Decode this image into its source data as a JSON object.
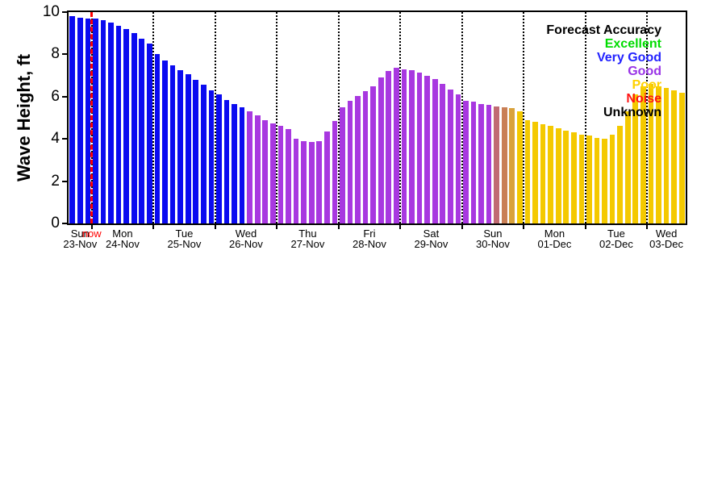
{
  "legend": {
    "title": "Forecast Accuracy",
    "entries": [
      {
        "label": "Excellent",
        "color": "#00dc00"
      },
      {
        "label": "Very Good",
        "color": "#2222ff"
      },
      {
        "label": "Good",
        "color": "#9933e6"
      },
      {
        "label": "Poor",
        "color": "#ffd200"
      },
      {
        "label": "Noise",
        "color": "#ff1414"
      },
      {
        "label": "Unknown",
        "color": "#000000"
      }
    ]
  },
  "chart_data": {
    "type": "bar",
    "title": "",
    "xlabel": "",
    "ylabel": "Wave Height, ft",
    "ylim": [
      0,
      10
    ],
    "yticks": [
      0,
      2,
      4,
      6,
      8,
      10
    ],
    "grid": "vertical-dotted-per-day",
    "legend_position": "top-right",
    "now_label": "now",
    "now_index": 3,
    "now_line_color": "#ff0000",
    "bar_colors": {
      "very_good": "#0b0bf0",
      "good": "#a838e0",
      "fade1": "#c06a72",
      "fade2": "#c97f55",
      "fade3": "#d9a23c",
      "poor": "#f4c900"
    },
    "days": [
      {
        "day": "Sun",
        "date": "23-Nov",
        "bars": [
          [
            9.8,
            "very_good"
          ],
          [
            9.75,
            "very_good"
          ],
          [
            9.7,
            "very_good"
          ]
        ]
      },
      {
        "day": "Mon",
        "date": "24-Nov",
        "bars": [
          [
            9.7,
            "very_good"
          ],
          [
            9.6,
            "very_good"
          ],
          [
            9.5,
            "very_good"
          ],
          [
            9.35,
            "very_good"
          ],
          [
            9.2,
            "very_good"
          ],
          [
            9.0,
            "very_good"
          ],
          [
            8.75,
            "very_good"
          ],
          [
            8.5,
            "very_good"
          ]
        ]
      },
      {
        "day": "Tue",
        "date": "25-Nov",
        "bars": [
          [
            8.0,
            "very_good"
          ],
          [
            7.7,
            "very_good"
          ],
          [
            7.5,
            "very_good"
          ],
          [
            7.25,
            "very_good"
          ],
          [
            7.05,
            "very_good"
          ],
          [
            6.8,
            "very_good"
          ],
          [
            6.55,
            "very_good"
          ],
          [
            6.3,
            "very_good"
          ]
        ]
      },
      {
        "day": "Wed",
        "date": "26-Nov",
        "bars": [
          [
            6.1,
            "very_good"
          ],
          [
            5.85,
            "very_good"
          ],
          [
            5.65,
            "very_good"
          ],
          [
            5.5,
            "very_good"
          ],
          [
            5.3,
            "good"
          ],
          [
            5.1,
            "good"
          ],
          [
            4.9,
            "good"
          ],
          [
            4.75,
            "good"
          ]
        ]
      },
      {
        "day": "Thu",
        "date": "27-Nov",
        "bars": [
          [
            4.6,
            "good"
          ],
          [
            4.45,
            "good"
          ],
          [
            4.0,
            "good"
          ],
          [
            3.9,
            "good"
          ],
          [
            3.85,
            "good"
          ],
          [
            3.9,
            "good"
          ],
          [
            4.35,
            "good"
          ],
          [
            4.85,
            "good"
          ]
        ]
      },
      {
        "day": "Fri",
        "date": "28-Nov",
        "bars": [
          [
            5.5,
            "good"
          ],
          [
            5.8,
            "good"
          ],
          [
            6.05,
            "good"
          ],
          [
            6.25,
            "good"
          ],
          [
            6.5,
            "good"
          ],
          [
            6.9,
            "good"
          ],
          [
            7.2,
            "good"
          ],
          [
            7.35,
            "good"
          ]
        ]
      },
      {
        "day": "Sat",
        "date": "29-Nov",
        "bars": [
          [
            7.3,
            "good"
          ],
          [
            7.25,
            "good"
          ],
          [
            7.15,
            "good"
          ],
          [
            7.0,
            "good"
          ],
          [
            6.85,
            "good"
          ],
          [
            6.6,
            "good"
          ],
          [
            6.35,
            "good"
          ],
          [
            6.1,
            "good"
          ]
        ]
      },
      {
        "day": "Sun",
        "date": "30-Nov",
        "bars": [
          [
            5.8,
            "good"
          ],
          [
            5.75,
            "good"
          ],
          [
            5.65,
            "good"
          ],
          [
            5.6,
            "good"
          ],
          [
            5.55,
            "fade1"
          ],
          [
            5.5,
            "fade2"
          ],
          [
            5.45,
            "fade3"
          ],
          [
            5.3,
            "poor"
          ]
        ]
      },
      {
        "day": "Mon",
        "date": "01-Dec",
        "bars": [
          [
            4.9,
            "poor"
          ],
          [
            4.8,
            "poor"
          ],
          [
            4.7,
            "poor"
          ],
          [
            4.6,
            "poor"
          ],
          [
            4.5,
            "poor"
          ],
          [
            4.4,
            "poor"
          ],
          [
            4.3,
            "poor"
          ],
          [
            4.2,
            "poor"
          ]
        ]
      },
      {
        "day": "Tue",
        "date": "02-Dec",
        "bars": [
          [
            4.15,
            "poor"
          ],
          [
            4.05,
            "poor"
          ],
          [
            4.0,
            "poor"
          ],
          [
            4.2,
            "poor"
          ],
          [
            4.6,
            "poor"
          ],
          [
            5.3,
            "poor"
          ],
          [
            6.1,
            "poor"
          ],
          [
            6.5,
            "poor"
          ]
        ]
      },
      {
        "day": "Wed",
        "date": "03-Dec",
        "bars": [
          [
            6.6,
            "poor"
          ],
          [
            6.5,
            "poor"
          ],
          [
            6.4,
            "poor"
          ],
          [
            6.3,
            "poor"
          ],
          [
            6.2,
            "poor"
          ]
        ]
      }
    ]
  }
}
